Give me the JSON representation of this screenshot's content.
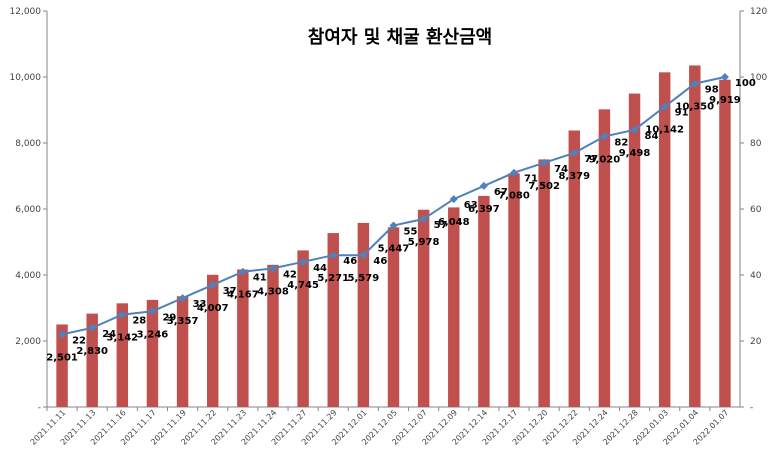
{
  "chart_data": {
    "type": "bar+line",
    "title": "참여자 및 채굴 환산금액",
    "categories": [
      "2021.11.11",
      "2021.11.13",
      "2021.11.16",
      "2021.11.17",
      "2021.11.19",
      "2021.11.22",
      "2021.11.23",
      "2021.11.24",
      "2021.11.27",
      "2021.11.29",
      "2021.12.01",
      "2021.12.05",
      "2021.12.07",
      "2021.12.09",
      "2021.12.14",
      "2021.12.17",
      "2021.12.20",
      "2021.12.22",
      "2021.12.24",
      "2021.12.28",
      "2022.01.03",
      "2022.01.04",
      "2022.01.07"
    ],
    "series": [
      {
        "name": "채굴 환산금액",
        "type": "bar",
        "axis": "left",
        "color": "#c0504d",
        "values": [
          2501,
          2830,
          3142,
          3246,
          3357,
          4007,
          4167,
          4308,
          4745,
          5271,
          5579,
          5447,
          5978,
          6048,
          6397,
          7080,
          7502,
          8379,
          9020,
          9498,
          10142,
          10350,
          9919
        ],
        "labels": [
          "2,501",
          "2,830",
          "3,142",
          "3,246",
          "3,357",
          "4,007",
          "4,167",
          "4,308",
          "4,745",
          "5,271",
          "5,579",
          "5,447",
          "5,978",
          "6,048",
          "6,397",
          "7,080",
          "7,502",
          "8,379",
          "9,020",
          "9,498",
          "10,142",
          "10,350",
          "9,919"
        ]
      },
      {
        "name": "참여자",
        "type": "line",
        "axis": "right",
        "color": "#4f81bd",
        "values": [
          22,
          24,
          28,
          29,
          33,
          37,
          41,
          42,
          44,
          46,
          46,
          55,
          57,
          63,
          67,
          71,
          74,
          77,
          82,
          84,
          91,
          98,
          100
        ],
        "labels": [
          "22",
          "24",
          "28",
          "29",
          "33",
          "37",
          "41",
          "42",
          "44",
          "46",
          "46",
          "55",
          "57",
          "63",
          "67",
          "71",
          "74",
          "77",
          "82",
          "84",
          "91",
          "98",
          "100"
        ]
      }
    ],
    "left_axis": {
      "min": 0,
      "max": 12000,
      "ticks": [
        0,
        2000,
        4000,
        6000,
        8000,
        10000,
        12000
      ],
      "tick_labels": [
        "-",
        "2,000",
        "4,000",
        "6,000",
        "8,000",
        "10,000",
        "12,000"
      ]
    },
    "right_axis": {
      "min": 0,
      "max": 120,
      "ticks": [
        0,
        20,
        40,
        60,
        80,
        100,
        120
      ],
      "tick_labels": [
        "-",
        "20",
        "40",
        "60",
        "80",
        "100",
        "120"
      ]
    },
    "grid": false,
    "legend": "none"
  }
}
